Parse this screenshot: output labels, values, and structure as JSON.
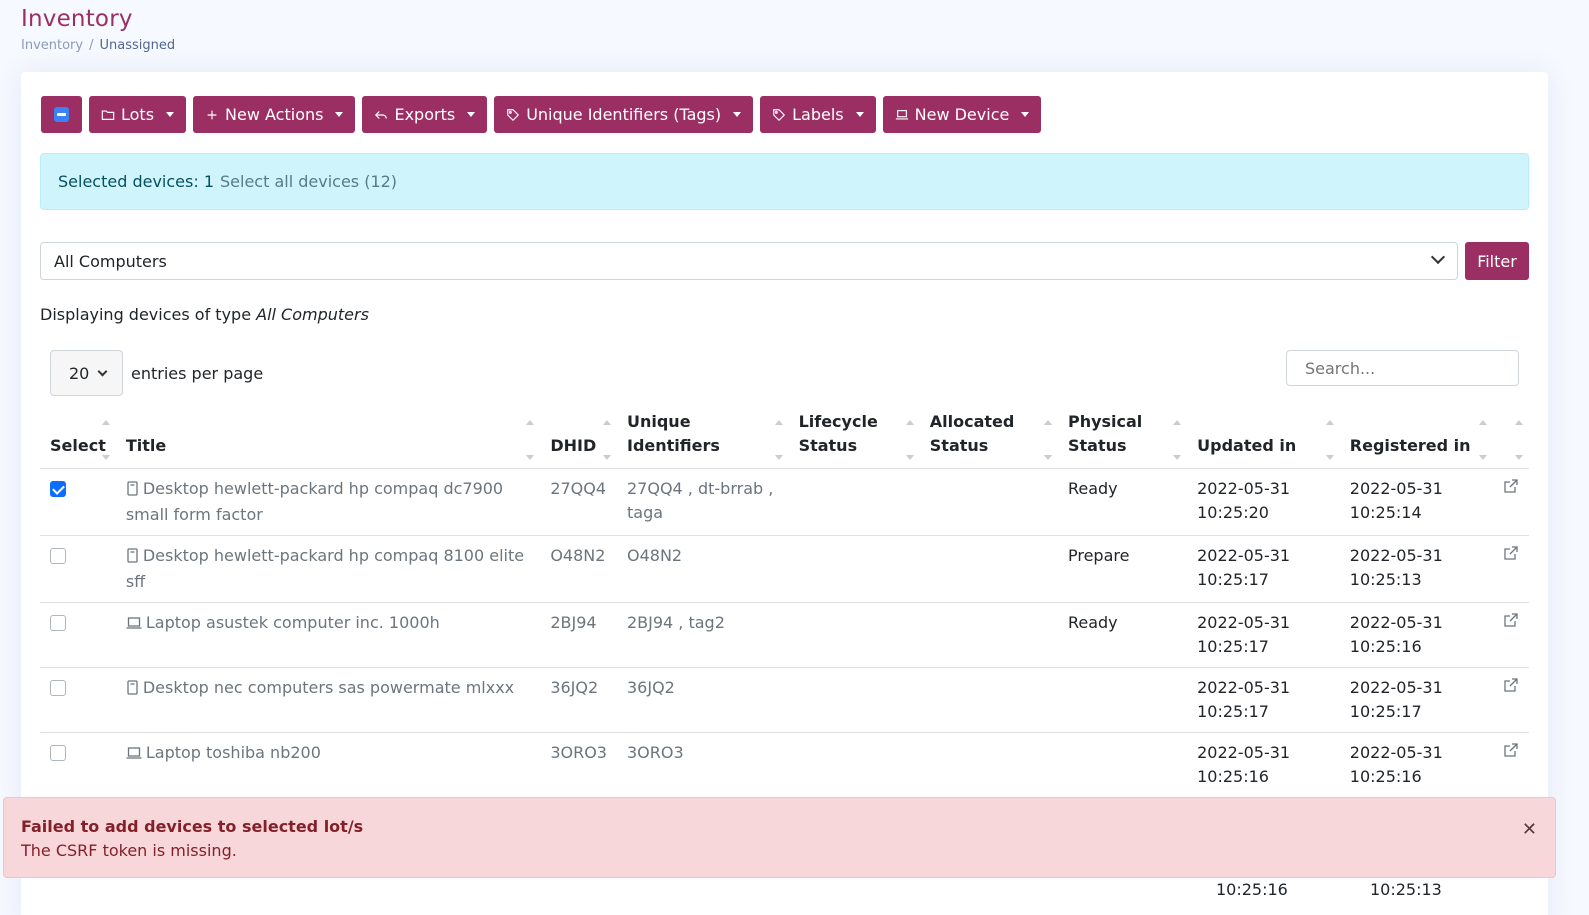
{
  "header": {
    "title": "Inventory",
    "breadcrumb": [
      "Inventory",
      "/",
      "Unassigned"
    ]
  },
  "toolbar": {
    "lots": "Lots",
    "new_actions": "New Actions",
    "exports": "Exports",
    "unique_identifiers": "Unique Identifiers (Tags)",
    "labels": "Labels",
    "new_device": "New Device"
  },
  "selection": {
    "label": "Selected devices: 1",
    "select_all": "Select all devices (12)"
  },
  "filter": {
    "type_value": "All Computers",
    "button": "Filter",
    "displaying_prefix": "Displaying devices of type",
    "displaying_type": "All Computers"
  },
  "pagination": {
    "per_page": "20",
    "per_page_label": "entries per page",
    "search_placeholder": "Search..."
  },
  "table": {
    "headers": [
      "Select",
      "Title",
      "DHID",
      "Unique Identifiers",
      "Lifecycle Status",
      "Allocated Status",
      "Physical Status",
      "Updated in",
      "Registered in"
    ],
    "rows": [
      {
        "checked": true,
        "icon": "desktop-icon",
        "title": "Desktop hewlett-packard hp compaq dc7900 small form factor",
        "dhid": "27QQ4",
        "uid": "27QQ4 , dt-brrab , taga",
        "lifecycle": "",
        "allocated": "",
        "physical": "Ready",
        "updated_date": "2022-05-31",
        "updated_time": "10:25:20",
        "registered_date": "2022-05-31",
        "registered_time": "10:25:14"
      },
      {
        "checked": false,
        "icon": "desktop-icon",
        "title": "Desktop hewlett-packard hp compaq 8100 elite sff",
        "dhid": "O48N2",
        "uid": "O48N2",
        "lifecycle": "",
        "allocated": "",
        "physical": "Prepare",
        "updated_date": "2022-05-31",
        "updated_time": "10:25:17",
        "registered_date": "2022-05-31",
        "registered_time": "10:25:13"
      },
      {
        "checked": false,
        "icon": "laptop-icon",
        "title": "Laptop asustek computer inc. 1000h",
        "dhid": "2BJ94",
        "uid": "2BJ94 , tag2",
        "lifecycle": "",
        "allocated": "",
        "physical": "Ready",
        "updated_date": "2022-05-31",
        "updated_time": "10:25:17",
        "registered_date": "2022-05-31",
        "registered_time": "10:25:16"
      },
      {
        "checked": false,
        "icon": "desktop-icon",
        "title": "Desktop nec computers sas powermate mlxxx",
        "dhid": "36JQ2",
        "uid": "36JQ2",
        "lifecycle": "",
        "allocated": "",
        "physical": "",
        "updated_date": "2022-05-31",
        "updated_time": "10:25:17",
        "registered_date": "2022-05-31",
        "registered_time": "10:25:17"
      },
      {
        "checked": false,
        "icon": "laptop-icon",
        "title": "Laptop toshiba nb200",
        "dhid": "3ORO3",
        "uid": "3ORO3",
        "lifecycle": "",
        "allocated": "",
        "physical": "",
        "updated_date": "2022-05-31",
        "updated_time": "10:25:16",
        "registered_date": "2022-05-31",
        "registered_time": "10:25:16"
      }
    ],
    "partial_row": {
      "updated_time": "10:25:16",
      "registered_time": "10:25:13"
    }
  },
  "error": {
    "title": "Failed to add devices to selected lot/s",
    "message": "The CSRF token is missing."
  },
  "colors": {
    "brand": "#9b2f64",
    "info_bg": "#cff4fc",
    "danger_bg": "#f8d7da"
  }
}
